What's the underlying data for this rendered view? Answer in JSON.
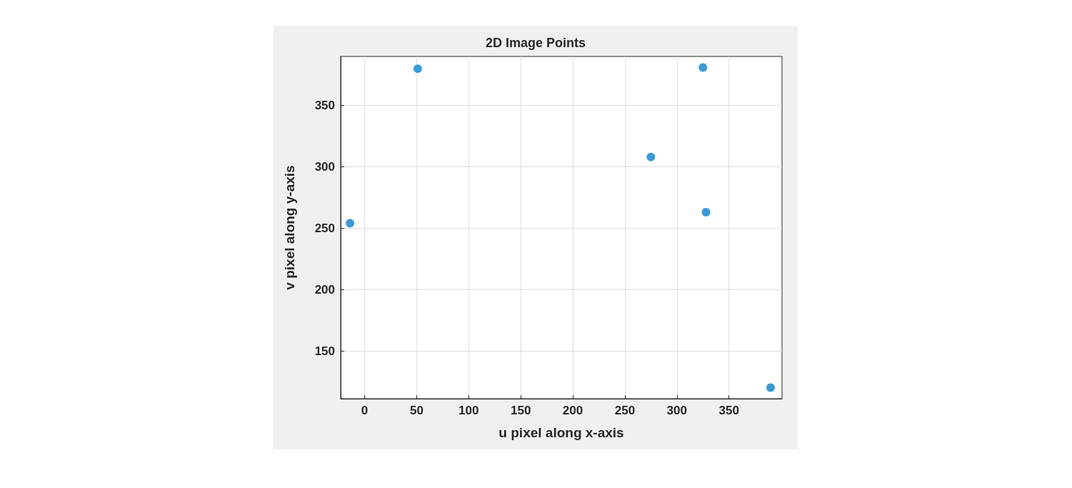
{
  "chart_data": {
    "type": "scatter",
    "title": "2D Image Points",
    "xlabel": "u pixel along x-axis",
    "ylabel": "v pixel along y-axis",
    "x": [
      -14,
      51,
      275,
      325,
      328,
      390
    ],
    "values": [
      254,
      380,
      308,
      381,
      263,
      120
    ],
    "color": "#3a9ad6",
    "marker": "circle",
    "grid": true,
    "xlim": [
      -23,
      401
    ],
    "xticks": [
      0,
      50,
      100,
      150,
      200,
      250,
      300,
      350
    ],
    "ylim": [
      111,
      390
    ],
    "yticks": [
      150,
      200,
      250,
      300,
      350
    ]
  }
}
